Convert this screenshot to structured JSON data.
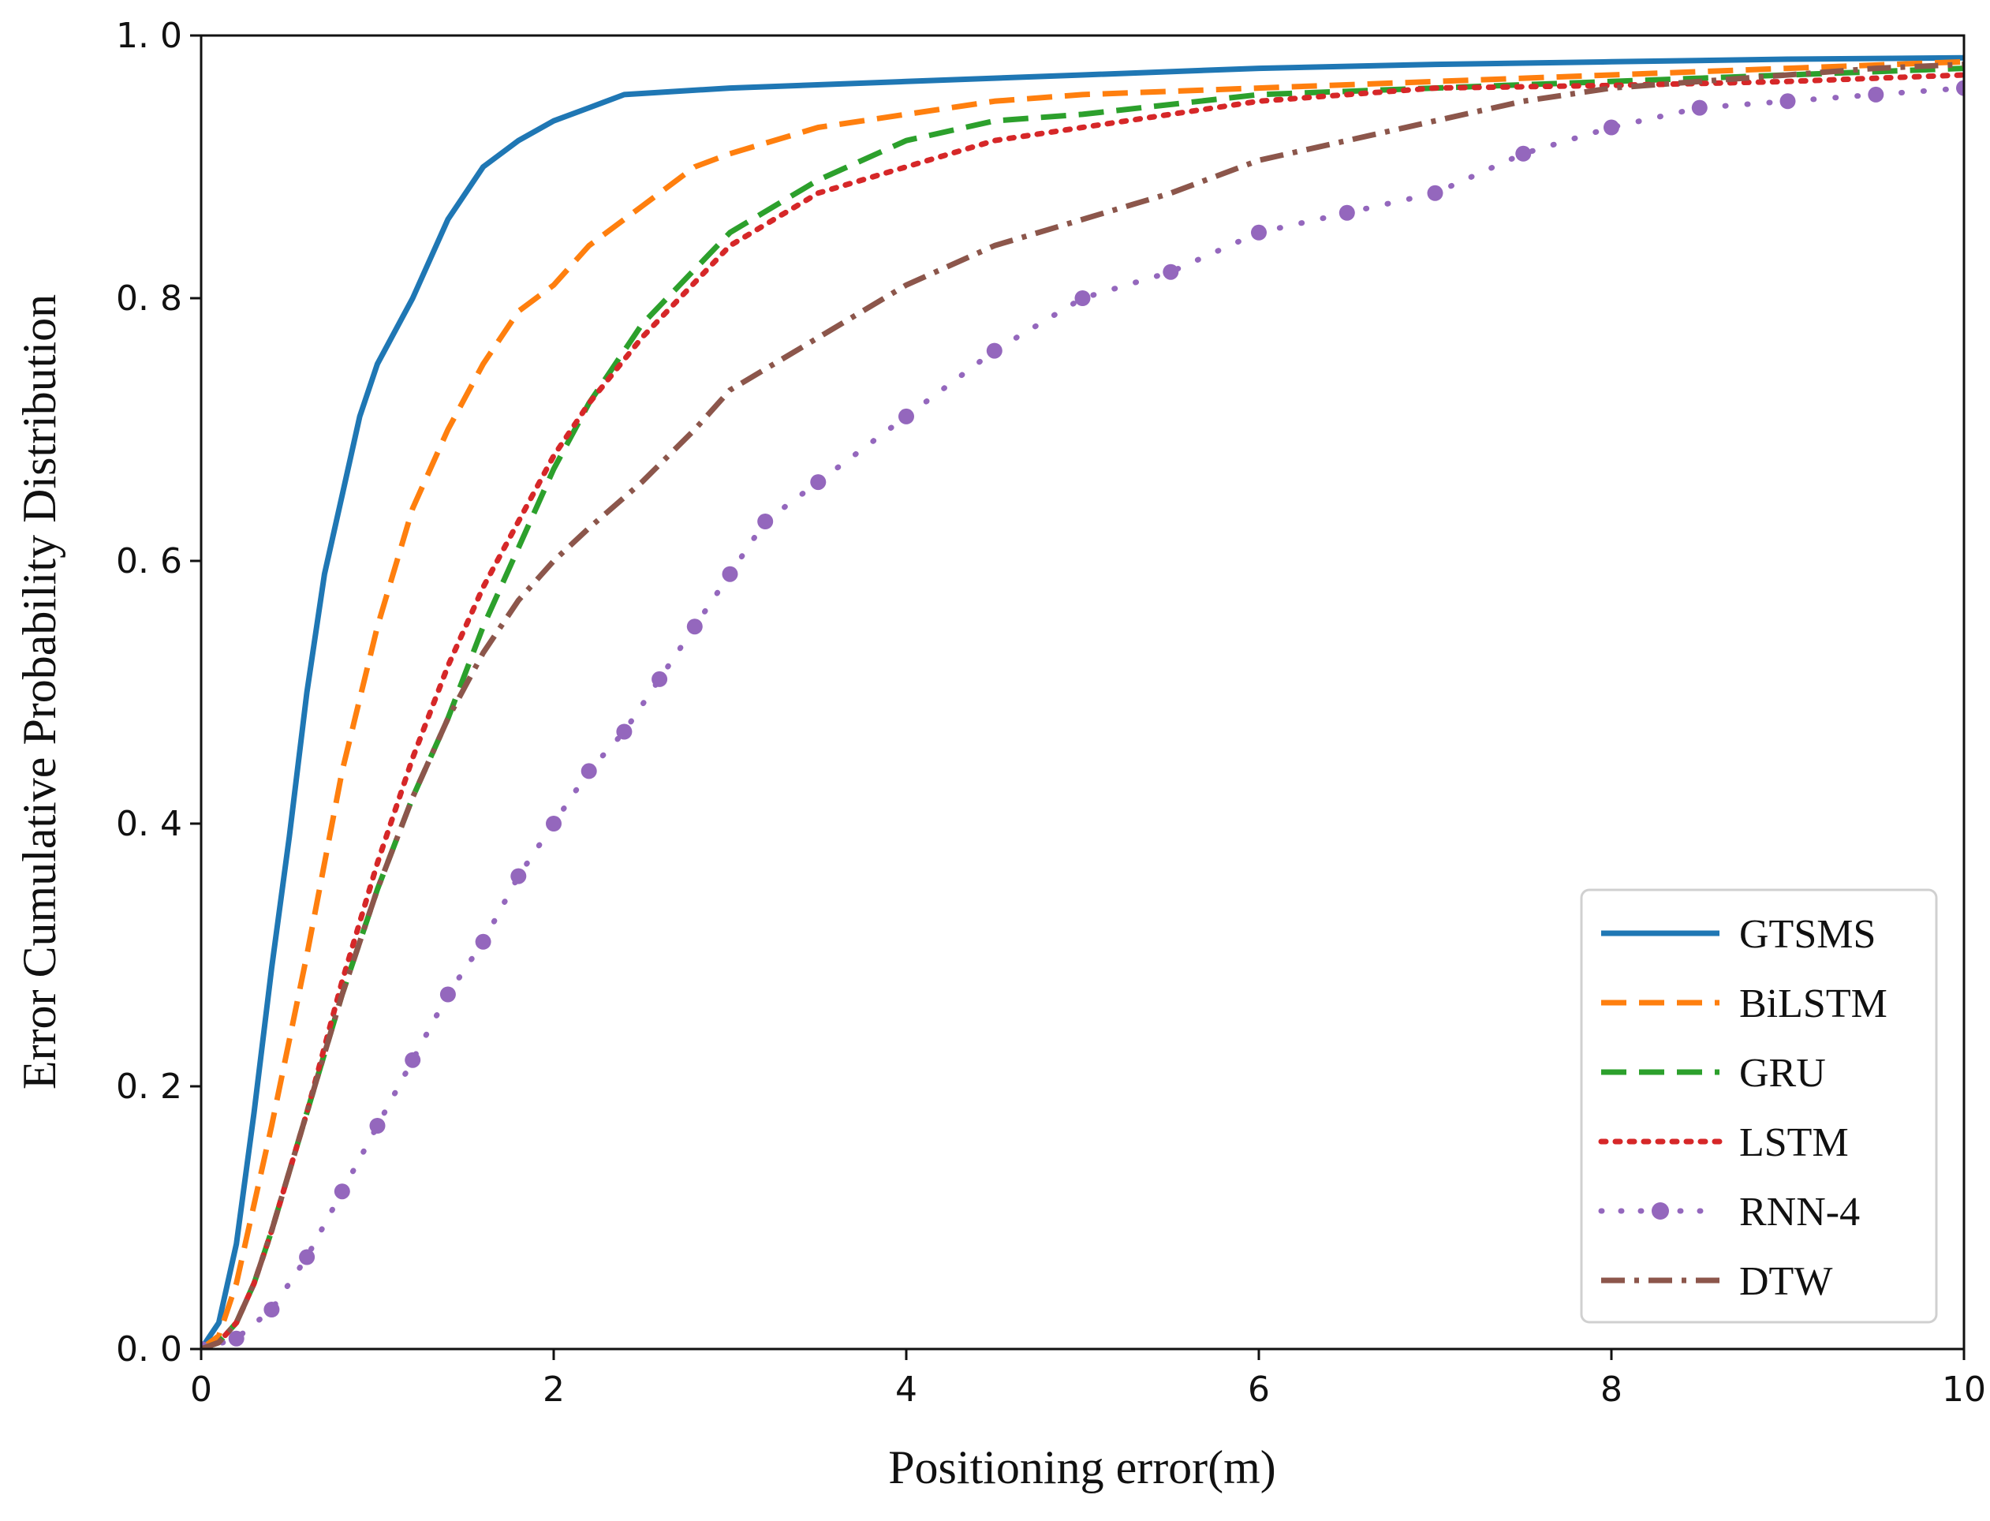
{
  "chart_data": {
    "type": "line",
    "title": "",
    "xlabel": "Positioning error(m)",
    "ylabel": "Error Cumulative Probability Distribution",
    "xlim": [
      0,
      10
    ],
    "ylim": [
      0,
      1
    ],
    "x_ticks": [
      0,
      2,
      4,
      6,
      8,
      10
    ],
    "x_tick_labels": [
      "0",
      "2",
      "4",
      "6",
      "8",
      "10"
    ],
    "y_ticks": [
      0,
      0.2,
      0.4,
      0.6,
      0.8,
      1.0
    ],
    "y_tick_labels": [
      "0. 0",
      "0. 2",
      "0. 4",
      "0. 6",
      "0. 8",
      "1. 0"
    ],
    "grid": false,
    "legend_position": "lower-right",
    "series": [
      {
        "name": "GTSMS",
        "color": "#1f77b4",
        "style": "solid",
        "x": [
          0,
          0.1,
          0.2,
          0.3,
          0.4,
          0.5,
          0.6,
          0.7,
          0.8,
          0.9,
          1.0,
          1.2,
          1.4,
          1.6,
          1.8,
          2.0,
          2.2,
          2.4,
          3.0,
          4.0,
          5.0,
          6.0,
          7.0,
          8.0,
          9.0,
          10.0
        ],
        "y": [
          0,
          0.02,
          0.08,
          0.18,
          0.29,
          0.39,
          0.5,
          0.59,
          0.65,
          0.71,
          0.75,
          0.8,
          0.86,
          0.9,
          0.92,
          0.935,
          0.945,
          0.955,
          0.96,
          0.965,
          0.97,
          0.975,
          0.978,
          0.98,
          0.982,
          0.983
        ]
      },
      {
        "name": "BiLSTM",
        "color": "#ff7f0e",
        "style": "dashed",
        "x": [
          0,
          0.1,
          0.2,
          0.3,
          0.4,
          0.6,
          0.8,
          1.0,
          1.2,
          1.4,
          1.6,
          1.8,
          2.0,
          2.2,
          2.5,
          2.8,
          3.0,
          3.5,
          4.0,
          4.5,
          5.0,
          6.0,
          7.0,
          8.0,
          9.0,
          10.0
        ],
        "y": [
          0,
          0.01,
          0.05,
          0.11,
          0.17,
          0.3,
          0.44,
          0.55,
          0.64,
          0.7,
          0.75,
          0.79,
          0.81,
          0.84,
          0.87,
          0.9,
          0.91,
          0.93,
          0.94,
          0.95,
          0.955,
          0.96,
          0.965,
          0.97,
          0.975,
          0.98
        ]
      },
      {
        "name": "GRU",
        "color": "#2ca02c",
        "style": "dashed",
        "x": [
          0,
          0.1,
          0.2,
          0.3,
          0.4,
          0.6,
          0.8,
          1.0,
          1.2,
          1.4,
          1.6,
          1.8,
          2.0,
          2.2,
          2.5,
          3.0,
          3.5,
          4.0,
          4.5,
          5.0,
          6.0,
          7.0,
          8.0,
          9.0,
          10.0
        ],
        "y": [
          0,
          0.005,
          0.02,
          0.05,
          0.09,
          0.18,
          0.27,
          0.35,
          0.42,
          0.48,
          0.55,
          0.61,
          0.67,
          0.72,
          0.78,
          0.85,
          0.89,
          0.92,
          0.935,
          0.94,
          0.955,
          0.96,
          0.965,
          0.97,
          0.975
        ]
      },
      {
        "name": "LSTM",
        "color": "#d62728",
        "style": "dotted",
        "x": [
          0,
          0.1,
          0.2,
          0.3,
          0.4,
          0.6,
          0.8,
          1.0,
          1.2,
          1.4,
          1.6,
          1.8,
          2.0,
          2.2,
          2.5,
          3.0,
          3.5,
          4.0,
          4.5,
          5.0,
          6.0,
          7.0,
          8.0,
          9.0,
          10.0
        ],
        "y": [
          0,
          0.005,
          0.02,
          0.05,
          0.09,
          0.18,
          0.28,
          0.37,
          0.45,
          0.52,
          0.58,
          0.63,
          0.68,
          0.72,
          0.77,
          0.84,
          0.88,
          0.9,
          0.92,
          0.93,
          0.95,
          0.96,
          0.962,
          0.965,
          0.97
        ]
      },
      {
        "name": "RNN-4",
        "color": "#9467bd",
        "style": "dotted-markers",
        "x": [
          0,
          0.2,
          0.4,
          0.6,
          0.8,
          1.0,
          1.2,
          1.4,
          1.6,
          1.8,
          2.0,
          2.2,
          2.4,
          2.6,
          2.8,
          3.0,
          3.2,
          3.5,
          4.0,
          4.5,
          5.0,
          5.5,
          6.0,
          6.5,
          7.0,
          7.5,
          8.0,
          8.5,
          9.0,
          9.5,
          10.0
        ],
        "y": [
          0,
          0.008,
          0.03,
          0.07,
          0.12,
          0.17,
          0.22,
          0.27,
          0.31,
          0.36,
          0.4,
          0.44,
          0.47,
          0.51,
          0.55,
          0.59,
          0.63,
          0.66,
          0.71,
          0.76,
          0.8,
          0.82,
          0.85,
          0.865,
          0.88,
          0.91,
          0.93,
          0.945,
          0.95,
          0.955,
          0.96
        ]
      },
      {
        "name": "DTW",
        "color": "#8c564b",
        "style": "dashdot",
        "x": [
          0,
          0.1,
          0.2,
          0.3,
          0.4,
          0.6,
          0.8,
          1.0,
          1.2,
          1.4,
          1.6,
          1.8,
          2.0,
          2.2,
          2.5,
          2.8,
          3.0,
          3.5,
          4.0,
          4.5,
          5.0,
          5.5,
          6.0,
          6.5,
          7.0,
          7.5,
          8.0,
          8.5,
          9.0,
          9.5,
          10.0
        ],
        "y": [
          0,
          0.005,
          0.02,
          0.05,
          0.09,
          0.18,
          0.27,
          0.35,
          0.42,
          0.48,
          0.53,
          0.57,
          0.6,
          0.625,
          0.66,
          0.7,
          0.73,
          0.77,
          0.81,
          0.84,
          0.86,
          0.88,
          0.905,
          0.92,
          0.935,
          0.95,
          0.96,
          0.965,
          0.97,
          0.975,
          0.978
        ]
      }
    ]
  }
}
